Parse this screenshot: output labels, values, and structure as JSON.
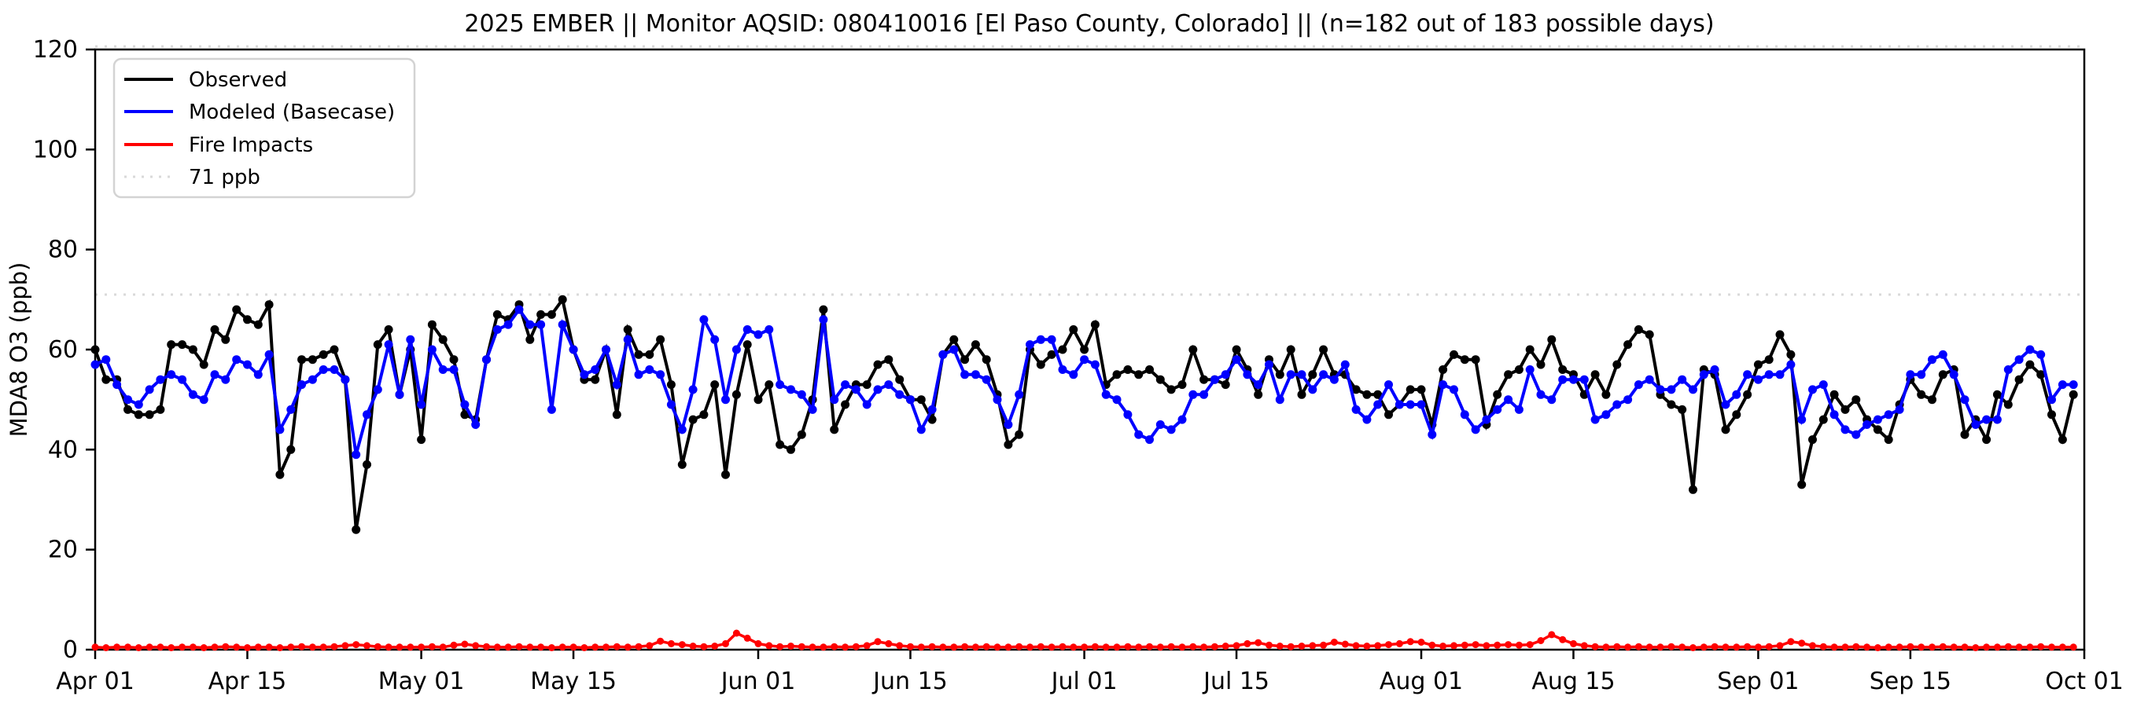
{
  "title": "2025 EMBER || Monitor AQSID: 080410016 [El Paso County, Colorado] || (n=182 out of 183 possible days)",
  "y_axis": {
    "label": "MDA8 O3 (ppb)",
    "ticks": [
      0,
      20,
      40,
      60,
      80,
      100,
      120
    ],
    "ylim": [
      0,
      120
    ]
  },
  "x_axis": {
    "ticks": [
      {
        "label": "Apr 01",
        "day": 0
      },
      {
        "label": "Apr 15",
        "day": 14
      },
      {
        "label": "May 01",
        "day": 30
      },
      {
        "label": "May 15",
        "day": 44
      },
      {
        "label": "Jun 01",
        "day": 61
      },
      {
        "label": "Jun 15",
        "day": 75
      },
      {
        "label": "Jul 01",
        "day": 91
      },
      {
        "label": "Jul 15",
        "day": 105
      },
      {
        "label": "Aug 01",
        "day": 122
      },
      {
        "label": "Aug 15",
        "day": 136
      },
      {
        "label": "Sep 01",
        "day": 153
      },
      {
        "label": "Sep 15",
        "day": 167
      },
      {
        "label": "Oct 01",
        "day": 183
      }
    ],
    "total_days": 183
  },
  "legend": {
    "items": [
      {
        "label": "Observed",
        "color": "#000000",
        "style": "solid"
      },
      {
        "label": "Modeled (Basecase)",
        "color": "#0000ff",
        "style": "solid"
      },
      {
        "label": "Fire Impacts",
        "color": "#ff0000",
        "style": "solid"
      },
      {
        "label": "71 ppb",
        "color": "#d9d9d9",
        "style": "dotted"
      }
    ]
  },
  "chart_data": {
    "type": "line",
    "title": "2025 EMBER || Monitor AQSID: 080410016 [El Paso County, Colorado] || (n=182 out of 183 possible days)",
    "xlabel": "",
    "ylabel": "MDA8 O3 (ppb)",
    "x_start": "Apr 01",
    "x_end": "Oct 01",
    "n_days": 183,
    "ylim": [
      0,
      120
    ],
    "grid": false,
    "legend_position": "upper left",
    "threshold_lines": [
      {
        "value": 71,
        "label": "71 ppb",
        "color": "#d9d9d9",
        "style": "dotted"
      },
      {
        "value": 120.6,
        "label": "",
        "color": "#d9d9d9",
        "style": "dotted"
      }
    ],
    "series": [
      {
        "name": "Observed",
        "color": "#000000",
        "marker": "circle",
        "values": [
          60,
          54,
          54,
          48,
          47,
          47,
          48,
          61,
          61,
          60,
          57,
          64,
          62,
          68,
          66,
          65,
          69,
          35,
          40,
          58,
          58,
          59,
          60,
          54,
          24,
          37,
          61,
          64,
          51,
          60,
          42,
          65,
          62,
          58,
          47,
          46,
          58,
          67,
          66,
          69,
          62,
          67,
          67,
          70,
          60,
          54,
          54,
          60,
          47,
          64,
          59,
          59,
          62,
          53,
          37,
          46,
          47,
          53,
          35,
          51,
          61,
          50,
          53,
          41,
          40,
          43,
          50,
          68,
          44,
          49,
          53,
          53,
          57,
          58,
          54,
          50,
          50,
          46,
          59,
          62,
          58,
          61,
          58,
          51,
          41,
          43,
          60,
          57,
          59,
          60,
          64,
          60,
          65,
          53,
          55,
          56,
          55,
          56,
          54,
          52,
          53,
          60,
          54,
          54,
          53,
          60,
          56,
          51,
          58,
          55,
          60,
          51,
          55,
          60,
          55,
          55,
          52,
          51,
          51,
          47,
          49,
          52,
          52,
          45,
          56,
          59,
          58,
          58,
          45,
          51,
          55,
          56,
          60,
          57,
          62,
          56,
          55,
          51,
          55,
          51,
          57,
          61,
          64,
          63,
          51,
          49,
          48,
          32,
          56,
          55,
          44,
          47,
          51,
          57,
          58,
          63,
          59,
          33,
          42,
          46,
          51,
          48,
          50,
          46,
          44,
          42,
          49,
          54,
          51,
          50,
          55,
          56,
          43,
          46,
          42,
          51,
          49,
          54,
          57,
          55,
          47,
          42,
          51
        ]
      },
      {
        "name": "Modeled (Basecase)",
        "color": "#0000ff",
        "marker": "circle",
        "values": [
          57,
          58,
          53,
          50,
          49,
          52,
          54,
          55,
          54,
          51,
          50,
          55,
          54,
          58,
          57,
          55,
          59,
          44,
          48,
          53,
          54,
          56,
          56,
          54,
          39,
          47,
          52,
          61,
          51,
          62,
          49,
          60,
          56,
          56,
          49,
          45,
          58,
          64,
          65,
          68,
          65,
          65,
          48,
          65,
          60,
          55,
          56,
          60,
          53,
          62,
          55,
          56,
          55,
          49,
          44,
          52,
          66,
          62,
          50,
          60,
          64,
          63,
          64,
          53,
          52,
          51,
          48,
          66,
          50,
          53,
          52,
          49,
          52,
          53,
          51,
          50,
          44,
          48,
          59,
          60,
          55,
          55,
          54,
          50,
          45,
          51,
          61,
          62,
          62,
          56,
          55,
          58,
          57,
          51,
          50,
          47,
          43,
          42,
          45,
          44,
          46,
          51,
          51,
          54,
          55,
          58,
          55,
          53,
          57,
          50,
          55,
          55,
          52,
          55,
          54,
          57,
          48,
          46,
          49,
          53,
          49,
          49,
          49,
          43,
          53,
          52,
          47,
          44,
          46,
          48,
          50,
          48,
          56,
          51,
          50,
          54,
          54,
          54,
          46,
          47,
          49,
          50,
          53,
          54,
          52,
          52,
          54,
          52,
          55,
          56,
          49,
          51,
          55,
          54,
          55,
          55,
          57,
          46,
          52,
          53,
          47,
          44,
          43,
          45,
          46,
          47,
          48,
          55,
          55,
          58,
          59,
          55,
          50,
          45,
          46,
          46,
          56,
          58,
          60,
          59,
          50,
          53,
          53
        ]
      },
      {
        "name": "Fire Impacts",
        "color": "#ff0000",
        "marker": "circle",
        "values": [
          0.5,
          0.4,
          0.5,
          0.5,
          0.4,
          0.5,
          0.5,
          0.4,
          0.5,
          0.5,
          0.4,
          0.5,
          0.6,
          0.5,
          0.4,
          0.5,
          0.5,
          0.4,
          0.5,
          0.6,
          0.5,
          0.5,
          0.6,
          0.8,
          1.0,
          0.8,
          0.6,
          0.5,
          0.5,
          0.5,
          0.5,
          0.6,
          0.5,
          0.9,
          1.1,
          0.8,
          0.6,
          0.5,
          0.5,
          0.6,
          0.5,
          0.5,
          0.4,
          0.5,
          0.5,
          0.4,
          0.5,
          0.5,
          0.6,
          0.5,
          0.6,
          0.8,
          1.7,
          1.2,
          1.0,
          0.7,
          0.6,
          0.7,
          1.2,
          3.3,
          2.3,
          1.2,
          0.8,
          0.6,
          0.7,
          0.6,
          0.5,
          0.5,
          0.6,
          0.5,
          0.6,
          0.8,
          1.6,
          1.2,
          0.8,
          0.6,
          0.5,
          0.6,
          0.5,
          0.5,
          0.6,
          0.5,
          0.6,
          0.5,
          0.5,
          0.6,
          0.5,
          0.6,
          0.5,
          0.6,
          0.5,
          0.5,
          0.6,
          0.5,
          0.5,
          0.6,
          0.5,
          0.6,
          0.5,
          0.6,
          0.5,
          0.6,
          0.5,
          0.6,
          0.7,
          0.8,
          1.2,
          1.4,
          0.9,
          0.7,
          0.6,
          0.7,
          0.8,
          0.9,
          1.5,
          1.1,
          0.8,
          0.7,
          0.8,
          1.0,
          1.2,
          1.6,
          1.5,
          0.9,
          0.7,
          0.8,
          0.9,
          1.0,
          0.8,
          0.9,
          1.0,
          0.9,
          1.0,
          1.8,
          3.0,
          2.0,
          1.2,
          0.8,
          0.6,
          0.5,
          0.6,
          0.5,
          0.6,
          0.5,
          0.5,
          0.6,
          0.5,
          0.4,
          0.5,
          0.6,
          0.5,
          0.5,
          0.6,
          0.5,
          0.6,
          0.8,
          1.6,
          1.3,
          0.8,
          0.6,
          0.5,
          0.5,
          0.6,
          0.5,
          0.4,
          0.5,
          0.5,
          0.6,
          0.5,
          0.5,
          0.6,
          0.5,
          0.5,
          0.4,
          0.5,
          0.5,
          0.6,
          0.5,
          0.5,
          0.6,
          0.5,
          0.5,
          0.5
        ]
      }
    ]
  },
  "layout_colors": {
    "spine": "#000000",
    "legend_border": "#d3d3d3",
    "background": "#ffffff"
  }
}
